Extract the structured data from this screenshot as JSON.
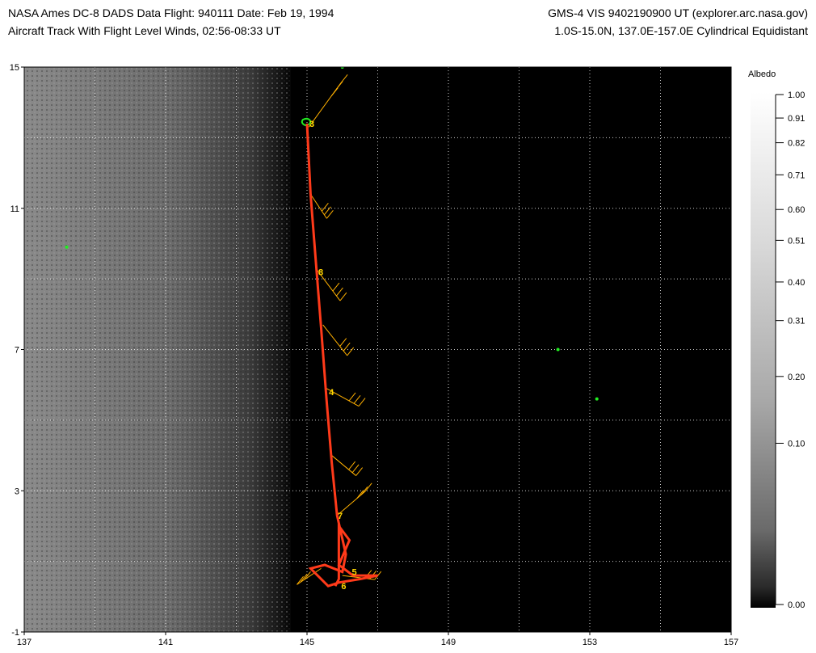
{
  "header": {
    "line1_left": "NASA Ames DC-8 DADS Data  Flight: 940111  Date: Feb 19, 1994",
    "line2_left": "Aircraft Track With Flight Level Winds, 02:56-08:33 UT",
    "line1_right": "GMS-4 VIS 9402190900 UT (explorer.arc.nasa.gov)",
    "line2_right": "1.0S-15.0N, 137.0E-157.0E Cylindrical Equidistant"
  },
  "map": {
    "lon_range": [
      137,
      157
    ],
    "lat_range": [
      -1,
      15
    ],
    "x_tick_labels": [
      "137",
      "141",
      "145",
      "149",
      "153",
      "157"
    ],
    "x_tick_values": [
      137,
      141,
      145,
      149,
      153,
      157
    ],
    "y_tick_labels": [
      "-1",
      "3",
      "7",
      "11",
      "15"
    ],
    "y_tick_values": [
      -1,
      3,
      7,
      11,
      15
    ],
    "grid_lon_step": 2,
    "grid_lat_step": 2,
    "grid": true,
    "colors": {
      "track": "#ff3a1a",
      "wind_barbs": "#ffb000",
      "hour_marks": "#ffd700",
      "land": "#22ee22",
      "grid": "#ffffff"
    },
    "hour_labels": [
      {
        "text": "3",
        "lon": 145.0,
        "lat": 13.4
      },
      {
        "text": "8",
        "lon": 145.25,
        "lat": 9.2
      },
      {
        "text": "4",
        "lon": 145.55,
        "lat": 5.8
      },
      {
        "text": "7",
        "lon": 145.8,
        "lat": 2.3
      },
      {
        "text": "5",
        "lon": 146.2,
        "lat": 0.7
      },
      {
        "text": "6",
        "lon": 145.9,
        "lat": 0.3
      }
    ]
  },
  "colorbar": {
    "title": "Albedo",
    "labels": [
      "1.00",
      "0.91",
      "0.82",
      "0.71",
      "0.60",
      "0.51",
      "0.40",
      "0.31",
      "0.20",
      "0.10",
      "0.00"
    ],
    "values": [
      1.0,
      0.91,
      0.82,
      0.71,
      0.6,
      0.51,
      0.4,
      0.31,
      0.2,
      0.1,
      0.0
    ]
  }
}
